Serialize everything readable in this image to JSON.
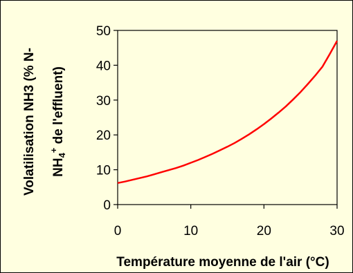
{
  "chart_data": {
    "type": "line",
    "title": "",
    "xlabel": "Température moyenne de l'air (°C)",
    "ylabel_line1": "Volatilisation NH3 (% N-",
    "ylabel_line2_prefix": "NH",
    "ylabel_line2_sub": "4",
    "ylabel_line2_sup": "+",
    "ylabel_line2_suffix": " de l'effluent)",
    "xlim": [
      0,
      30
    ],
    "ylim": [
      0,
      50
    ],
    "x_ticks": [
      0,
      10,
      20,
      30
    ],
    "y_ticks": [
      0,
      10,
      20,
      30,
      40,
      50
    ],
    "x_tick_labels": [
      "0",
      "10",
      "20",
      "30"
    ],
    "y_tick_labels": [
      "0",
      "10",
      "20",
      "30",
      "40",
      "50"
    ],
    "grid": false,
    "line_color": "#ff0000",
    "series": [
      {
        "x": [
          0,
          1,
          2,
          3,
          4,
          5,
          6,
          7,
          8,
          9,
          10,
          11,
          12,
          13,
          14,
          15,
          16,
          17,
          18,
          19,
          20,
          21,
          22,
          23,
          24,
          25,
          26,
          27,
          28,
          29,
          30
        ],
        "values": [
          6.2,
          6.6,
          7.1,
          7.6,
          8.1,
          8.7,
          9.3,
          9.9,
          10.5,
          11.2,
          12.0,
          12.8,
          13.7,
          14.6,
          15.6,
          16.6,
          17.7,
          18.9,
          20.2,
          21.6,
          23.1,
          24.7,
          26.4,
          28.2,
          30.2,
          32.3,
          34.6,
          37.0,
          39.6,
          43.2,
          47.0
        ]
      }
    ]
  }
}
